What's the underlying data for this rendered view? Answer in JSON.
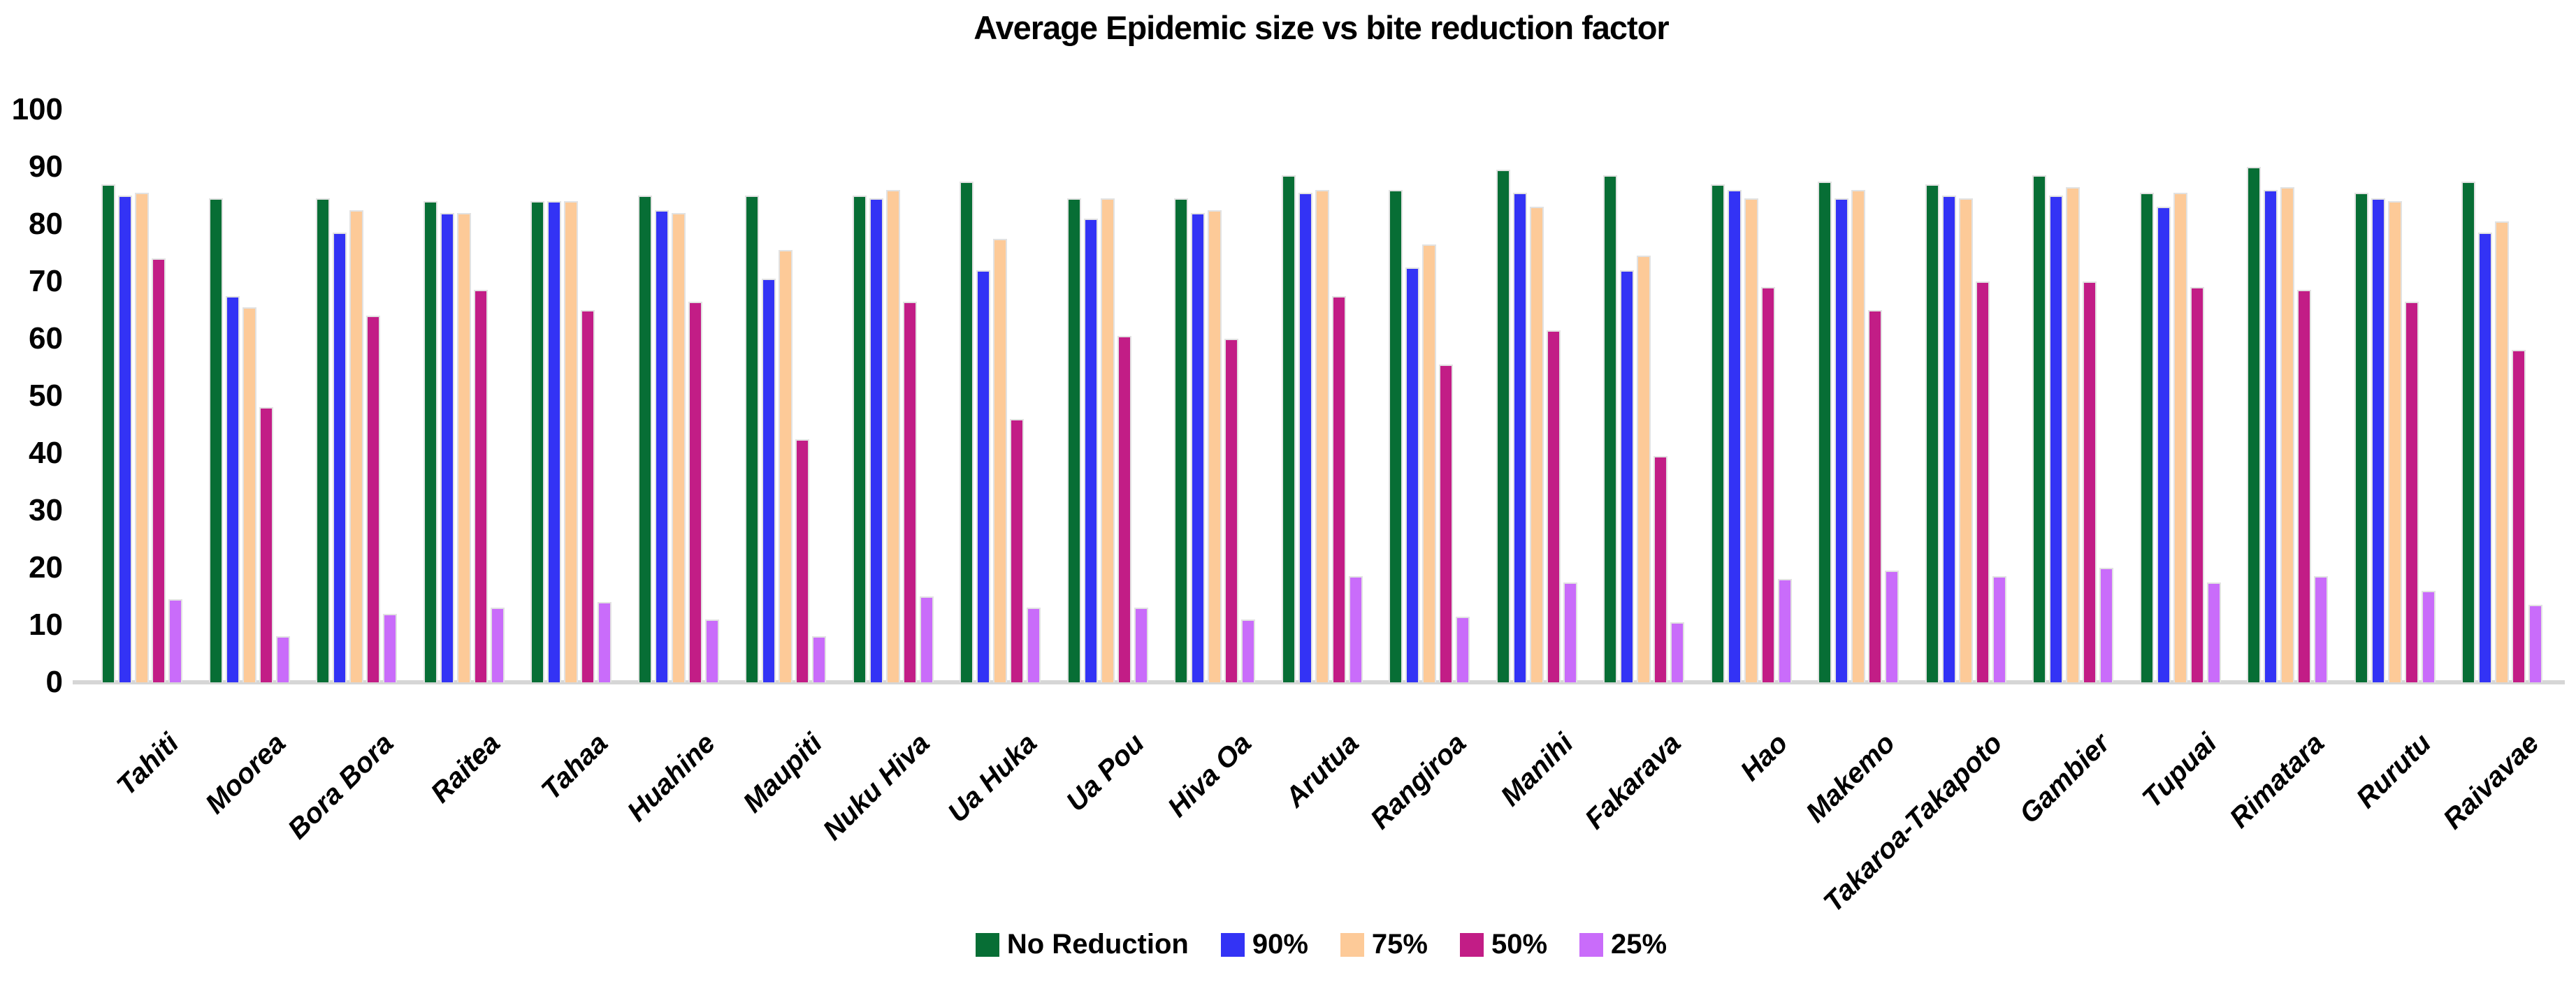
{
  "chart_data": {
    "type": "bar",
    "title": "Average Epidemic size vs bite reduction factor",
    "xlabel": "",
    "ylabel": "",
    "ylim": [
      0,
      100
    ],
    "yticks": [
      0,
      10,
      20,
      30,
      40,
      50,
      60,
      70,
      80,
      90,
      100
    ],
    "grid": false,
    "legend_position": "bottom",
    "categories": [
      "Tahiti",
      "Moorea",
      "Bora Bora",
      "Raitea",
      "Tahaa",
      "Huahine",
      "Maupiti",
      "Nuku Hiva",
      "Ua Huka",
      "Ua Pou",
      "Hiva Oa",
      "Arutua",
      "Rangiroa",
      "Manihi",
      "Fakarava",
      "Hao",
      "Makemo",
      "Takaroa-Takapoto",
      "Gambier",
      "Tupuai",
      "Rimatara",
      "Rurutu",
      "Raivavae"
    ],
    "series": [
      {
        "name": "No Reduction",
        "color": "#076e35",
        "values": [
          87,
          84.5,
          84.5,
          84,
          84,
          85,
          85,
          85,
          87.5,
          84.5,
          84.5,
          88.5,
          86,
          89.5,
          88.5,
          87,
          87.5,
          87,
          88.5,
          85.5,
          90,
          85.5,
          87.5
        ]
      },
      {
        "name": "90%",
        "color": "#3333f5",
        "values": [
          85,
          67.5,
          78.5,
          82,
          84,
          82.5,
          70.5,
          84.5,
          72,
          81,
          82,
          85.5,
          72.5,
          85.5,
          72,
          86,
          84.5,
          85,
          85,
          83,
          86,
          84.5,
          78.5
        ]
      },
      {
        "name": "75%",
        "color": "#fdca98",
        "values": [
          85.5,
          65.5,
          82.5,
          82,
          84,
          82,
          75.5,
          86,
          77.5,
          84.5,
          82.5,
          86,
          76.5,
          83,
          74.5,
          84.5,
          86,
          84.5,
          86.5,
          85.5,
          86.5,
          84,
          80.5
        ]
      },
      {
        "name": "50%",
        "color": "#c21d86",
        "values": [
          74,
          48,
          64,
          68.5,
          65,
          66.5,
          42.5,
          66.5,
          46,
          60.5,
          60,
          67.5,
          55.5,
          61.5,
          39.5,
          69,
          65,
          70,
          70,
          69,
          68.5,
          66.5,
          58
        ]
      },
      {
        "name": "25%",
        "color": "#c96cfa",
        "values": [
          14.5,
          8,
          12,
          13,
          14,
          11,
          8,
          15,
          13,
          13,
          11,
          18.5,
          11.5,
          17.5,
          10.5,
          18,
          19.5,
          18.5,
          20,
          17.5,
          18.5,
          16,
          13.5
        ]
      }
    ],
    "axis_line_color": "#d6d6d6"
  }
}
